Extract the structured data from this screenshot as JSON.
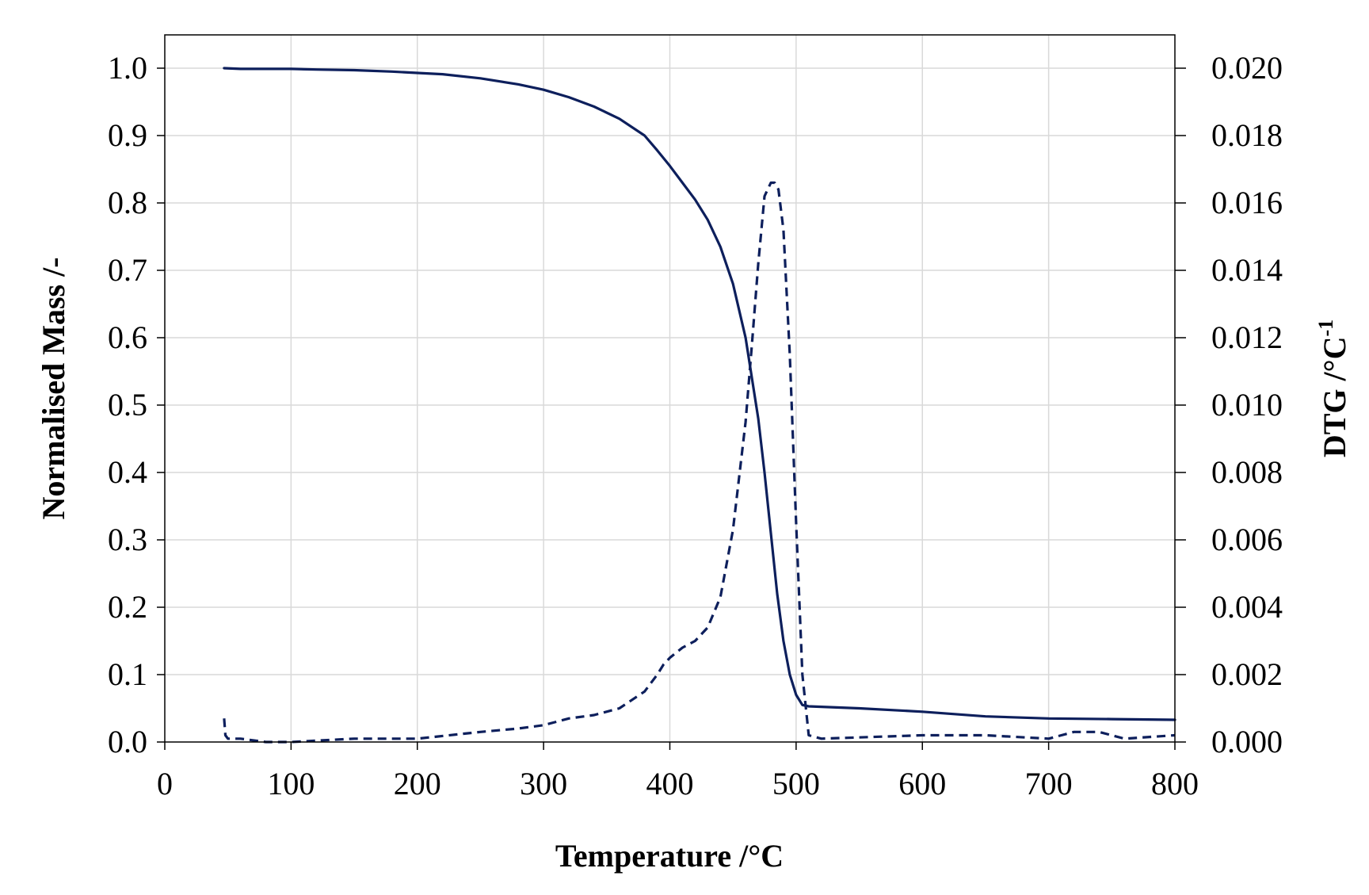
{
  "chart_data": {
    "type": "line",
    "title": "",
    "xlabel": "Temperature /°C",
    "ylabel": "Normalised Mass /-",
    "y2label_main": "DTG  /°C",
    "y2label_sup": "-1",
    "xlim": [
      0,
      800
    ],
    "ylim": [
      0,
      1.0
    ],
    "y2lim": [
      0,
      0.02
    ],
    "x_ticks": [
      "0",
      "100",
      "200",
      "300",
      "400",
      "500",
      "600",
      "700",
      "800"
    ],
    "y_ticks": [
      "0.0",
      "0.1",
      "0.2",
      "0.3",
      "0.4",
      "0.5",
      "0.6",
      "0.7",
      "0.8",
      "0.9",
      "1.0"
    ],
    "y2_ticks": [
      "0.000",
      "0.002",
      "0.004",
      "0.006",
      "0.008",
      "0.010",
      "0.012",
      "0.014",
      "0.016",
      "0.018",
      "0.020"
    ],
    "grid": true,
    "line_color": "#0d1f5c",
    "series": [
      {
        "axis": "left",
        "style": "solid",
        "x": [
          47,
          60,
          80,
          100,
          120,
          150,
          180,
          200,
          220,
          250,
          280,
          300,
          320,
          340,
          360,
          380,
          390,
          400,
          410,
          420,
          430,
          440,
          450,
          460,
          470,
          475,
          480,
          485,
          490,
          495,
          500,
          505,
          510,
          550,
          600,
          650,
          700,
          750,
          800
        ],
        "y": [
          1.0,
          0.999,
          0.999,
          0.999,
          0.998,
          0.997,
          0.995,
          0.993,
          0.991,
          0.985,
          0.976,
          0.968,
          0.957,
          0.943,
          0.925,
          0.9,
          0.878,
          0.855,
          0.83,
          0.805,
          0.775,
          0.735,
          0.68,
          0.6,
          0.48,
          0.4,
          0.31,
          0.22,
          0.15,
          0.1,
          0.07,
          0.055,
          0.053,
          0.05,
          0.045,
          0.038,
          0.035,
          0.034,
          0.033
        ]
      },
      {
        "axis": "right",
        "style": "dashed",
        "x": [
          47,
          48,
          50,
          60,
          80,
          100,
          150,
          200,
          250,
          280,
          300,
          320,
          340,
          360,
          380,
          390,
          395,
          400,
          410,
          420,
          430,
          440,
          450,
          460,
          465,
          470,
          475,
          480,
          483,
          486,
          490,
          495,
          500,
          505,
          510,
          520,
          600,
          650,
          700,
          720,
          740,
          760,
          800
        ],
        "y": [
          0.0007,
          0.0002,
          0.0001,
          0.0001,
          0.0,
          0.0,
          0.0001,
          0.0001,
          0.0003,
          0.0004,
          0.0005,
          0.0007,
          0.0008,
          0.001,
          0.0015,
          0.002,
          0.0023,
          0.0025,
          0.0028,
          0.003,
          0.0034,
          0.0043,
          0.0063,
          0.0095,
          0.0118,
          0.0142,
          0.0162,
          0.0166,
          0.0166,
          0.0164,
          0.0152,
          0.0115,
          0.0065,
          0.002,
          0.0002,
          0.0001,
          0.0002,
          0.0002,
          0.0001,
          0.0003,
          0.0003,
          0.0001,
          0.0002
        ]
      }
    ]
  }
}
